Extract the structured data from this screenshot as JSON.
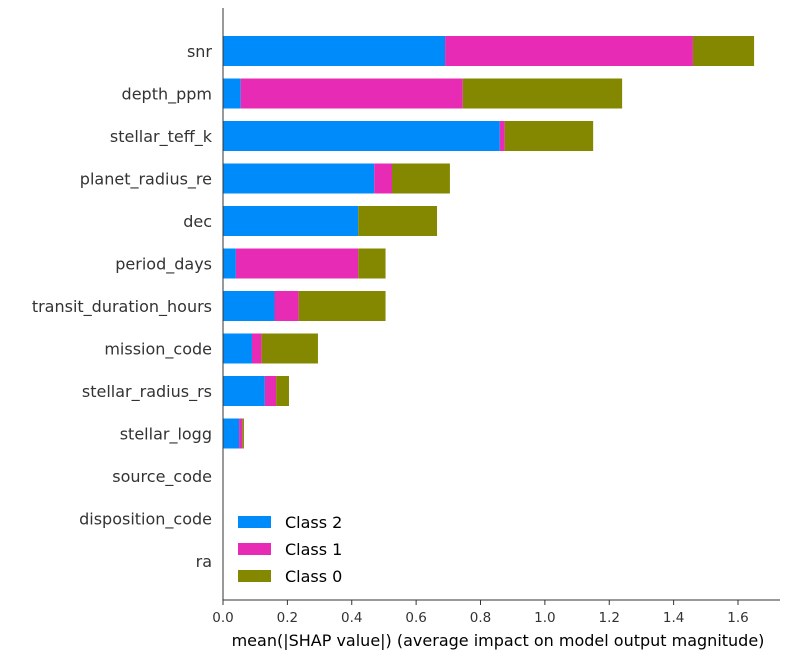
{
  "chart_data": {
    "type": "bar",
    "orientation": "horizontal",
    "stacked": true,
    "title": "",
    "xlabel": "mean(|SHAP value|) (average impact on model output magnitude)",
    "ylabel": "",
    "xlim": [
      0,
      1.68
    ],
    "x_ticks": [
      "0.0",
      "0.2",
      "0.4",
      "0.6",
      "0.8",
      "1.0",
      "1.2",
      "1.4",
      "1.6"
    ],
    "grid": false,
    "legend_position": "bottom-left",
    "categories": [
      "snr",
      "depth_ppm",
      "stellar_teff_k",
      "planet_radius_re",
      "dec",
      "period_days",
      "transit_duration_hours",
      "mission_code",
      "stellar_radius_rs",
      "stellar_logg",
      "source_code",
      "disposition_code",
      "ra"
    ],
    "series": [
      {
        "name": "Class 2",
        "color": "#008bfb",
        "values": [
          0.69,
          0.055,
          0.86,
          0.47,
          0.42,
          0.04,
          0.16,
          0.09,
          0.13,
          0.05,
          0.0,
          0.0,
          0.0
        ]
      },
      {
        "name": "Class 1",
        "color": "#e82bb4",
        "values": [
          0.77,
          0.69,
          0.015,
          0.055,
          0.0,
          0.38,
          0.075,
          0.03,
          0.035,
          0.01,
          0.0,
          0.0,
          0.0
        ]
      },
      {
        "name": "Class 0",
        "color": "#838800",
        "values": [
          0.19,
          0.495,
          0.275,
          0.18,
          0.245,
          0.085,
          0.27,
          0.175,
          0.04,
          0.005,
          0.0,
          0.0,
          0.0
        ]
      }
    ]
  }
}
